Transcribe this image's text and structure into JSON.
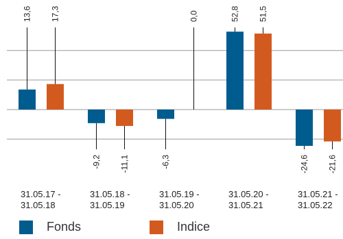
{
  "chart_data": {
    "type": "bar",
    "categories": [
      [
        "31.05.17 -",
        "31.05.18"
      ],
      [
        "31.05.18 -",
        "31.05.19"
      ],
      [
        "31.05.19 -",
        "31.05.20"
      ],
      [
        "31.05.20 -",
        "31.05.21"
      ],
      [
        "31.05.21 -",
        "31.05.22"
      ]
    ],
    "series": [
      {
        "name": "Fonds",
        "color": "#005c8f",
        "values": [
          13.6,
          -9.2,
          -6.3,
          52.8,
          -24.6
        ]
      },
      {
        "name": "Indice",
        "color": "#d35a1f",
        "values": [
          17.3,
          -11.1,
          0.0,
          51.5,
          -21.6
        ]
      }
    ],
    "value_labels": [
      [
        "13,6",
        "-9,2",
        "-6,3",
        "52,8",
        "-24,6"
      ],
      [
        "17,3",
        "-11,1",
        "0,0",
        "51,5",
        "-21,6"
      ]
    ],
    "title": "",
    "xlabel": "",
    "ylabel": "",
    "ylim": [
      -40,
      60
    ],
    "yticks": [
      -20,
      0,
      20,
      40
    ],
    "grid": true,
    "legend_position": "bottom-left"
  },
  "legend": {
    "items": [
      {
        "label": "Fonds",
        "color": "#005c8f"
      },
      {
        "label": "Indice",
        "color": "#d35a1f"
      }
    ]
  }
}
